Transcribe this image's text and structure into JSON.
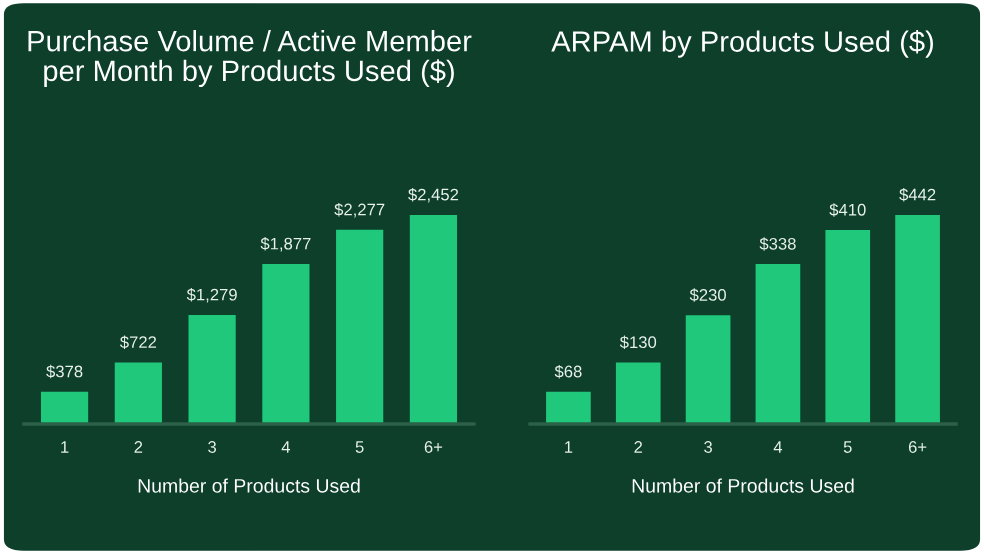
{
  "chart_data": [
    {
      "type": "bar",
      "title": "Purchase Volume / Active Member\nper Month by Products Used ($)",
      "xlabel": "Number of Products Used",
      "categories": [
        "1",
        "2",
        "3",
        "4",
        "5",
        "6+"
      ],
      "values": [
        378,
        722,
        1279,
        1877,
        2277,
        2452
      ],
      "value_labels": [
        "$378",
        "$722",
        "$1,279",
        "$1,877",
        "$2,277",
        "$2,452"
      ],
      "color": "#1fc87a",
      "grid": false,
      "legend": false
    },
    {
      "type": "bar",
      "title": "ARPAM by Products Used ($)",
      "xlabel": "Number of Products Used",
      "categories": [
        "1",
        "2",
        "3",
        "4",
        "5",
        "6+"
      ],
      "values": [
        68,
        130,
        230,
        338,
        410,
        442
      ],
      "value_labels": [
        "$68",
        "$130",
        "$230",
        "$338",
        "$410",
        "$442"
      ],
      "color": "#1fc87a",
      "grid": false,
      "legend": false
    }
  ]
}
